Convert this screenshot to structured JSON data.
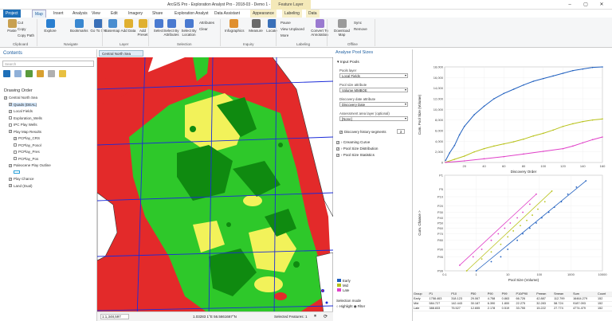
{
  "app": {
    "title": "ArcGIS Pro - Exploration Analyst Pro - 2018-03 - Demo 1 - Central North Sea",
    "context_tab": "Feature Layer"
  },
  "tabs": [
    "Project",
    "Map",
    "Insert",
    "Analysis",
    "View",
    "Edit",
    "Imagery",
    "Share",
    "Exploration Analyst",
    "Data Assistant",
    "Appearance",
    "Labeling",
    "Data"
  ],
  "ribbon": {
    "buttons": [
      {
        "label": "Paste",
        "x": 4
      },
      {
        "label": "Explore",
        "x": 52
      },
      {
        "label": "Bookmarks",
        "x": 88
      },
      {
        "label": "Go To XY",
        "x": 112
      },
      {
        "label": "Basemap",
        "x": 130
      },
      {
        "label": "Add Data",
        "x": 150
      },
      {
        "label": "Add Preset",
        "x": 168
      },
      {
        "label": "Select",
        "x": 188
      },
      {
        "label": "Select By Attributes",
        "x": 204
      },
      {
        "label": "Select By Location",
        "x": 226
      },
      {
        "label": "Infographics",
        "x": 282
      },
      {
        "label": "Measure",
        "x": 310
      },
      {
        "label": "Locate",
        "x": 330
      },
      {
        "label": "Convert To Annotation",
        "x": 390
      },
      {
        "label": "Download Map",
        "x": 418
      }
    ],
    "small": {
      "cut": "Cut",
      "copy": "Copy",
      "copy_path": "Copy Path",
      "attributes": "Attributes",
      "clear": "Clear",
      "pause": "Pause",
      "view_unplaced": "View Unplaced",
      "more": "More",
      "sync": "Sync",
      "remove": "Remove"
    },
    "groups": [
      {
        "label": "Clipboard",
        "x": 16
      },
      {
        "label": "Navigate",
        "x": 80
      },
      {
        "label": "Layer",
        "x": 150
      },
      {
        "label": "Selection",
        "x": 222
      },
      {
        "label": "Inquiry",
        "x": 305
      },
      {
        "label": "Labeling",
        "x": 372
      },
      {
        "label": "Offline",
        "x": 436
      }
    ]
  },
  "contents": {
    "title": "Contents",
    "search_placeholder": "Search",
    "drawing_order": "Drawing Order",
    "items": [
      {
        "label": "Central North Sea",
        "indent": 0,
        "checked": true
      },
      {
        "label": "Quads (DEAL)",
        "indent": 1,
        "checked": true,
        "selected": true
      },
      {
        "label": "Local Fields",
        "indent": 1,
        "checked": true
      },
      {
        "label": "Exploration_Wells",
        "indent": 1,
        "checked": false
      },
      {
        "label": "IPC Play Wells",
        "indent": 1,
        "checked": false
      },
      {
        "label": "Play Map Results",
        "indent": 1,
        "checked": true
      },
      {
        "label": "PCPlay_CRS",
        "indent": 2,
        "checked": true
      },
      {
        "label": "PCPlay_Posol",
        "indent": 2,
        "checked": false
      },
      {
        "label": "PCPlay_Pres",
        "indent": 2,
        "checked": false
      },
      {
        "label": "PCPlay_Pos",
        "indent": 2,
        "checked": false
      },
      {
        "label": "Paleocene Play Outline",
        "indent": 1,
        "checked": true
      },
      {
        "label": "",
        "indent": 2,
        "checked": false
      },
      {
        "label": "Play Chance",
        "indent": 1,
        "checked": true
      },
      {
        "label": "Land (Dual)",
        "indent": 1,
        "checked": true
      }
    ]
  },
  "map": {
    "tab_label": "Central North Sea",
    "scale": "1:1,348,597",
    "coords": "1.03283 1°E  56.5661667°N",
    "selected_features": "Selected Features: 1",
    "colors": {
      "red": "#e32a2a",
      "green": "#2ec82a",
      "darkgreen": "#0f8a10",
      "yellow": "#f2f25a",
      "white": "#ffffff",
      "blue": "#1b2bd9"
    }
  },
  "analyse": {
    "title": "Analyse Pool Sizes",
    "input_section": "Input Pools",
    "fields": [
      {
        "label": "Pools layer",
        "value": "Local Fields"
      },
      {
        "label": "Pool size attribute",
        "value": "Volume MMBOE"
      },
      {
        "label": "Discovery date attribute",
        "value": "Discovery Date"
      },
      {
        "label": "Assessment area layer (optional)",
        "value": "[None]"
      }
    ],
    "history_label": "Discovery history segments",
    "history_value": "3",
    "sections": [
      "Creaming Curve",
      "Pool Size Distribution",
      "Pool Size Statistics"
    ],
    "legend": [
      {
        "label": "Early",
        "color": "#1f5fbf"
      },
      {
        "label": "Mid",
        "color": "#b8c21a"
      },
      {
        "label": "Late",
        "color": "#e040c8"
      }
    ],
    "selection_mode": "Selection mode",
    "highlight": "Highlight",
    "filter": "Filter"
  },
  "chart_data": [
    {
      "type": "line",
      "xlabel": "Discovery Order",
      "ylabel": "Cum. Pool Size (Volume)",
      "xlim": [
        0,
        160
      ],
      "ylim": [
        0,
        18000
      ],
      "x_ticks": [
        20,
        40,
        60,
        80,
        100,
        120,
        140,
        160
      ],
      "y_ticks": [
        0,
        2000,
        4000,
        6000,
        8000,
        10000,
        12000,
        14000,
        16000,
        18000
      ],
      "series": [
        {
          "name": "Early",
          "x": [
            1,
            5,
            10,
            15,
            20,
            30,
            40,
            50,
            60,
            70,
            80,
            90,
            100,
            110,
            120,
            130,
            140,
            150,
            160
          ],
          "values": [
            400,
            1800,
            3200,
            5200,
            6800,
            9000,
            10600,
            12000,
            13000,
            13800,
            14600,
            15300,
            15800,
            16300,
            16800,
            17300,
            17600,
            17900,
            18000
          ]
        },
        {
          "name": "Mid",
          "x": [
            1,
            10,
            20,
            30,
            40,
            50,
            60,
            70,
            80,
            90,
            100,
            110,
            120,
            130,
            140,
            150,
            160
          ],
          "values": [
            50,
            600,
            1200,
            2000,
            2600,
            3100,
            3500,
            3900,
            4400,
            5000,
            5500,
            6100,
            6800,
            7300,
            7700,
            8000,
            8200
          ]
        },
        {
          "name": "Late",
          "x": [
            1,
            20,
            40,
            60,
            80,
            100,
            120,
            130,
            140,
            150,
            160
          ],
          "values": [
            20,
            300,
            700,
            1100,
            1600,
            2100,
            2600,
            3100,
            3700,
            4300,
            4800
          ]
        }
      ]
    },
    {
      "type": "scatter",
      "xlabel": "Pool Size (Volume)",
      "ylabel": "Cum. Chance >",
      "x_ticks": [
        0.1,
        1,
        10,
        100,
        1000,
        10000
      ],
      "y_ticks": [
        "P1",
        "P5",
        "P10",
        "P20",
        "P30",
        "P40",
        "P50",
        "P60",
        "P70",
        "P80",
        "P90",
        "P95",
        "P99"
      ],
      "series": [
        {
          "name": "Early",
          "x": [
            1,
            3,
            6,
            10,
            20,
            30,
            50,
            80,
            120,
            200,
            300,
            500,
            800,
            1500,
            3000
          ],
          "values": [
            99,
            97,
            95,
            90,
            80,
            70,
            60,
            50,
            40,
            30,
            22,
            15,
            8,
            4,
            2
          ]
        },
        {
          "name": "Mid",
          "x": [
            0.5,
            1.5,
            3,
            6,
            10,
            15,
            25,
            40,
            60,
            90,
            150,
            250
          ],
          "values": [
            99,
            96,
            92,
            85,
            75,
            65,
            55,
            45,
            35,
            25,
            15,
            6
          ]
        },
        {
          "name": "Late",
          "x": [
            0.3,
            0.8,
            1.5,
            3,
            5,
            8,
            12,
            20,
            30,
            50,
            80
          ],
          "values": [
            98,
            95,
            90,
            80,
            70,
            60,
            50,
            40,
            30,
            18,
            8
          ]
        }
      ]
    }
  ],
  "stats_table": {
    "headers": [
      "Group",
      "P1",
      "P10",
      "P50",
      "P90",
      "P99",
      "P10/P90",
      "Pmean",
      "Smean",
      "Sum",
      "Count"
    ],
    "rows": [
      [
        "Early",
        "1758.463",
        "318.123",
        "29.067",
        "4.758",
        "0.863",
        "66.726",
        "42.887",
        "112.799",
        "16464.279",
        "152"
      ],
      [
        "Mid",
        "584.727",
        "142.443",
        "30.187",
        "6.390",
        "1.800",
        "22.275",
        "32.283",
        "58.724",
        "9187.093",
        "152"
      ],
      [
        "Late",
        "388.833",
        "75.527",
        "12.655",
        "2.178",
        "0.519",
        "33.755",
        "15.222",
        "27.774",
        "4774.479",
        "152"
      ]
    ]
  }
}
